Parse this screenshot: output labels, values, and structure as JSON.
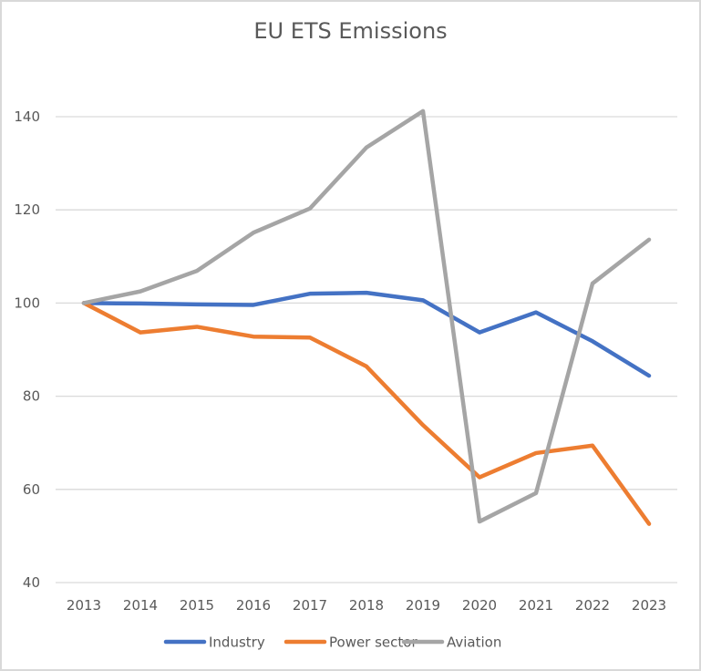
{
  "chart_data": {
    "type": "line",
    "title": "EU ETS Emissions",
    "xlabel": "",
    "ylabel": "",
    "categories": [
      "2013",
      "2014",
      "2015",
      "2016",
      "2017",
      "2018",
      "2019",
      "2020",
      "2021",
      "2022",
      "2023"
    ],
    "ylim": [
      40,
      150
    ],
    "yticks": [
      40,
      60,
      80,
      100,
      120,
      140
    ],
    "grid": true,
    "legend_position": "bottom",
    "series": [
      {
        "name": "Industry",
        "color": "#4472c4",
        "values": [
          100,
          99.9,
          99.7,
          99.6,
          102.0,
          102.2,
          100.6,
          93.7,
          98.0,
          91.8,
          84.4
        ]
      },
      {
        "name": "Power sector",
        "color": "#ed7d31",
        "values": [
          100,
          93.7,
          94.9,
          92.8,
          92.6,
          86.4,
          73.8,
          62.6,
          67.8,
          69.4,
          52.6
        ]
      },
      {
        "name": "Aviation",
        "color": "#a5a5a5",
        "values": [
          100,
          102.5,
          106.9,
          115.1,
          120.3,
          133.4,
          141.2,
          53.1,
          59.2,
          104.2,
          113.6
        ]
      }
    ]
  }
}
